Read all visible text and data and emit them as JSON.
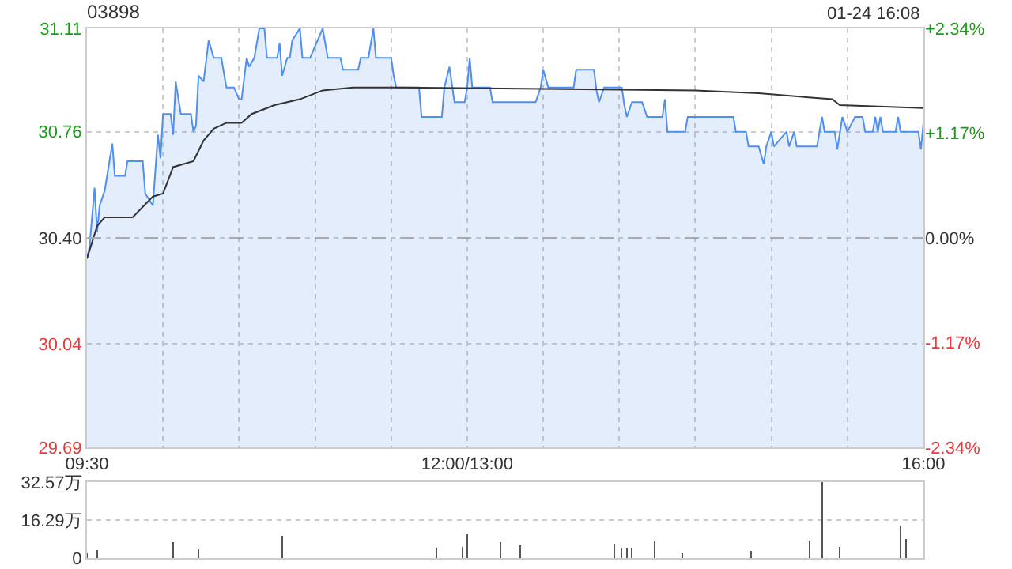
{
  "chart_data": [
    {
      "type": "line",
      "title": "03898",
      "annotations": [
        "01-24 16:08"
      ],
      "grid": true,
      "categories": [
        "09:30",
        null,
        null,
        null,
        null,
        null,
        null,
        null,
        null,
        null,
        null,
        null,
        null,
        null,
        null,
        null,
        null,
        null,
        null,
        null,
        null,
        null,
        null,
        null,
        null,
        null,
        null,
        null,
        null,
        null,
        null,
        null,
        null,
        null,
        null,
        null,
        null,
        null,
        null,
        null,
        null,
        null,
        null,
        null,
        null,
        null,
        null,
        null,
        null,
        null,
        null,
        null,
        null,
        null,
        null,
        null,
        null,
        null,
        null,
        null,
        null,
        null,
        null,
        null,
        null,
        null,
        null,
        null,
        null,
        null,
        null,
        null,
        null,
        null,
        null,
        null,
        null,
        null,
        null,
        null,
        null,
        null,
        null,
        null,
        null,
        null,
        null,
        null,
        null,
        null,
        null,
        null,
        null,
        null,
        null,
        null,
        null,
        null,
        null,
        null,
        null,
        null,
        null,
        null,
        null,
        null,
        null,
        null,
        null,
        null,
        null,
        null,
        null,
        null,
        null,
        null,
        null,
        null,
        null,
        null,
        null,
        null,
        null,
        null,
        null,
        null,
        null,
        null,
        null,
        null,
        null,
        null,
        null,
        null,
        null,
        null,
        null,
        null,
        null,
        null,
        null,
        null,
        null,
        null,
        null,
        null,
        null,
        null,
        null,
        null,
        "12:00/13:00",
        null,
        null,
        null,
        null,
        null,
        null,
        null,
        null,
        null,
        null,
        null,
        null,
        null,
        null,
        null,
        null,
        null,
        null,
        null,
        null,
        null,
        null,
        null,
        null,
        null,
        null,
        null,
        null,
        null,
        null,
        null,
        null,
        null,
        null,
        null,
        null,
        null,
        null,
        null,
        null,
        null,
        null,
        null,
        null,
        null,
        null,
        null,
        null,
        null,
        null,
        null,
        null,
        null,
        null,
        null,
        null,
        null,
        null,
        null,
        null,
        null,
        null,
        null,
        null,
        null,
        null,
        null,
        null,
        null,
        null,
        null,
        null,
        null,
        null,
        null,
        null,
        null,
        null,
        null,
        null,
        null,
        null,
        null,
        null,
        null,
        null,
        null,
        null,
        null,
        null,
        null,
        null,
        null,
        null,
        null,
        null,
        null,
        null,
        null,
        null,
        null,
        null,
        null,
        null,
        null,
        null,
        null,
        null,
        null,
        null,
        null,
        null,
        null,
        null,
        null,
        null,
        null,
        null,
        null,
        null,
        null,
        null,
        null,
        null,
        null,
        null,
        null,
        null,
        null,
        null,
        null,
        null,
        null,
        null,
        null,
        null,
        null,
        null,
        null,
        null,
        null,
        null,
        null,
        null,
        null,
        null,
        null,
        null,
        null,
        null,
        null,
        null,
        null,
        null,
        null,
        null,
        null,
        null,
        null,
        null,
        null,
        null,
        null,
        null,
        null,
        null,
        null,
        null,
        null,
        null,
        null,
        null,
        null,
        null,
        null,
        null,
        null,
        null,
        null,
        "16:00"
      ],
      "ylim": [
        29.69,
        31.11
      ],
      "yticks": [
        31.11,
        30.76,
        {
          "value": 30.4,
          "label": "30.40"
        },
        30.04,
        29.69
      ],
      "y2lim": [
        -2.34,
        2.34
      ],
      "y2ticks": [
        {
          "value": 2.34,
          "label": "+2.34%"
        },
        {
          "value": 1.17,
          "label": "+1.17%"
        },
        {
          "value": 0,
          "label": "0.00%"
        },
        {
          "value": -1.17,
          "label": "-1.17%"
        },
        {
          "value": -2.34,
          "label": "-2.34%"
        }
      ],
      "ref_lines": [
        {
          "axis": "y",
          "value": 30.4,
          "color": "#aaaaaa",
          "line_style": "dashed"
        }
      ],
      "series": [
        {
          "type": "area",
          "color": "#4f8fef",
          "values": [
            30.33,
            30.37,
            null,
            30.57,
            30.42,
            30.51,
            null,
            30.56,
            null,
            null,
            30.72,
            30.61,
            null,
            null,
            null,
            30.61,
            30.66,
            null,
            null,
            null,
            null,
            null,
            30.66,
            30.55,
            null,
            null,
            30.51,
            null,
            30.75,
            30.67,
            30.82,
            null,
            null,
            30.82,
            30.75,
            30.93,
            null,
            30.82,
            null,
            null,
            null,
            30.82,
            30.76,
            30.78,
            30.95,
            null,
            30.93,
            null,
            31.07,
            null,
            31.01,
            null,
            null,
            31.01,
            null,
            30.91,
            null,
            null,
            30.91,
            null,
            30.87,
            30.87,
            null,
            31.01,
            30.98,
            null,
            31.01,
            null,
            31.11,
            null,
            31.11,
            31.01,
            null,
            null,
            null,
            31.01,
            31.06,
            30.95,
            null,
            31.01,
            31.01,
            31.07,
            null,
            null,
            31.11,
            31.01,
            null,
            null,
            31.01,
            null,
            null,
            null,
            null,
            31.11,
            31.06,
            31.01,
            null,
            null,
            null,
            null,
            31.01,
            30.97,
            null,
            null,
            null,
            null,
            null,
            30.97,
            31.01,
            null,
            null,
            31.01,
            null,
            31.11,
            31.01,
            null,
            null,
            null,
            null,
            null,
            31.01,
            30.95,
            30.91,
            null,
            null,
            null,
            null,
            null,
            null,
            null,
            null,
            30.91,
            30.81,
            null,
            null,
            null,
            null,
            null,
            null,
            null,
            30.81,
            30.91,
            null,
            30.98,
            null,
            30.86,
            null,
            null,
            null,
            30.86,
            30.91,
            31.01,
            30.91,
            null,
            null,
            null,
            null,
            null,
            null,
            30.91,
            30.86,
            null,
            null,
            null,
            null,
            null,
            null,
            null,
            null,
            null,
            null,
            null,
            null,
            null,
            null,
            null,
            null,
            30.86,
            null,
            30.91,
            30.97,
            null,
            30.91,
            null,
            null,
            null,
            null,
            null,
            null,
            null,
            null,
            null,
            30.91,
            30.97,
            null,
            null,
            null,
            null,
            null,
            null,
            30.97,
            30.9,
            30.86,
            null,
            30.91,
            null,
            null,
            null,
            null,
            null,
            null,
            30.91,
            30.85,
            30.81,
            null,
            30.86,
            null,
            null,
            null,
            30.86,
            null,
            30.81,
            null,
            null,
            null,
            null,
            null,
            30.81,
            30.87,
            30.76,
            null,
            null,
            null,
            null,
            null,
            null,
            30.76,
            30.81,
            null,
            null,
            null,
            null,
            null,
            null,
            null,
            null,
            null,
            null,
            null,
            null,
            null,
            null,
            null,
            null,
            null,
            30.81,
            30.76,
            null,
            null,
            null,
            30.76,
            30.71,
            null,
            null,
            null,
            30.71,
            null,
            30.65,
            30.71,
            null,
            30.76,
            30.71,
            null,
            null,
            null,
            null,
            30.76,
            30.71,
            null,
            30.76,
            30.71,
            null,
            null,
            null,
            null,
            null,
            null,
            null,
            30.71,
            null,
            30.81,
            30.76,
            null,
            null,
            null,
            30.76,
            30.7,
            null,
            30.81,
            null,
            30.76,
            null,
            null,
            30.81,
            null,
            null,
            30.81,
            30.76,
            null,
            null,
            30.76,
            30.81,
            30.76,
            30.81,
            30.76,
            null,
            null,
            null,
            null,
            30.76,
            30.81,
            30.76,
            null,
            null,
            null,
            null,
            null,
            null,
            30.76,
            30.7,
            30.79
          ]
        },
        {
          "type": "line",
          "color": "#333333",
          "values": [
            30.33,
            null,
            null,
            null,
            30.44,
            null,
            null,
            30.47,
            null,
            null,
            null,
            null,
            null,
            null,
            null,
            null,
            null,
            null,
            30.47,
            null,
            null,
            null,
            null,
            null,
            null,
            null,
            30.54,
            null,
            null,
            null,
            30.55,
            null,
            null,
            null,
            30.64,
            null,
            null,
            null,
            null,
            null,
            null,
            null,
            30.66,
            null,
            null,
            null,
            30.73,
            null,
            null,
            null,
            30.77,
            null,
            null,
            null,
            null,
            30.79,
            null,
            null,
            null,
            null,
            null,
            30.79,
            null,
            null,
            null,
            30.82,
            null,
            null,
            null,
            null,
            null,
            null,
            null,
            null,
            30.85,
            null,
            null,
            null,
            null,
            null,
            null,
            null,
            null,
            null,
            30.87,
            null,
            null,
            null,
            null,
            null,
            null,
            null,
            null,
            30.9,
            null,
            null,
            null,
            null,
            null,
            null,
            null,
            null,
            null,
            null,
            null,
            30.91,
            null,
            null,
            null,
            null,
            null,
            null,
            null,
            30.91,
            null,
            null,
            null,
            null,
            null,
            null,
            null,
            30.91,
            null,
            null,
            null,
            null,
            null,
            null,
            null,
            null,
            null,
            null,
            null,
            null,
            null,
            null,
            null,
            null,
            null,
            null,
            null,
            null,
            null,
            null,
            null,
            null,
            null,
            null,
            null,
            null,
            null,
            null,
            null,
            null,
            null,
            null,
            null,
            null,
            null,
            null,
            null,
            null,
            null,
            null,
            null,
            null,
            null,
            null,
            null,
            null,
            null,
            null,
            null,
            null,
            null,
            null,
            null,
            null,
            null,
            null,
            null,
            null,
            null,
            null,
            null,
            null,
            null,
            null,
            null,
            null,
            null,
            null,
            null,
            null,
            null,
            null,
            null,
            null,
            null,
            null,
            null,
            null,
            null,
            null,
            null,
            null,
            null,
            null,
            null,
            null,
            null,
            null,
            null,
            null,
            null,
            null,
            null,
            null,
            null,
            null,
            null,
            null,
            null,
            null,
            null,
            null,
            null,
            null,
            null,
            null,
            null,
            null,
            null,
            null,
            null,
            null,
            null,
            null,
            null,
            null,
            30.9,
            null,
            null,
            null,
            null,
            null,
            null,
            null,
            null,
            null,
            null,
            null,
            null,
            null,
            null,
            null,
            null,
            null,
            null,
            null,
            null,
            null,
            null,
            null,
            null,
            30.89,
            null,
            null,
            null,
            null,
            null,
            null,
            null,
            null,
            null,
            null,
            null,
            null,
            null,
            null,
            null,
            null,
            null,
            null,
            null,
            null,
            null,
            null,
            null,
            null,
            null,
            null,
            null,
            null,
            30.87,
            null,
            null,
            30.85,
            null,
            null,
            null,
            null,
            null,
            null,
            null,
            null,
            null,
            null,
            null,
            null,
            null,
            null,
            null,
            null,
            null,
            null,
            null,
            null,
            null,
            null,
            null,
            null,
            null,
            null,
            null,
            null,
            null,
            null,
            null,
            null,
            30.84
          ]
        }
      ]
    },
    {
      "type": "bar",
      "grid": "y",
      "tick_labels": "y",
      "color": "#555555",
      "categories": [
        null,
        null,
        null,
        null,
        null,
        null,
        null,
        null,
        null,
        null,
        null,
        null,
        null,
        null,
        null,
        null,
        null,
        null,
        null,
        null,
        null,
        null,
        null,
        null,
        null,
        null,
        null,
        null,
        null,
        null,
        null,
        null,
        null,
        null,
        null,
        null,
        null,
        null,
        null,
        null,
        null,
        null,
        null,
        null,
        null,
        null,
        null,
        null,
        null,
        null,
        null,
        null,
        null,
        null,
        null,
        null,
        null,
        null,
        null,
        null,
        null,
        null,
        null,
        null,
        null,
        null,
        null,
        null,
        null,
        null,
        null,
        null,
        null,
        null,
        null,
        null,
        null,
        null,
        null,
        null,
        null,
        null,
        null,
        null,
        null,
        null,
        null,
        null,
        null,
        null,
        null,
        null,
        null,
        null,
        null,
        null,
        null,
        null,
        null,
        null,
        null,
        null,
        null,
        null,
        null,
        null,
        null,
        null,
        null,
        null,
        null,
        null,
        null,
        null,
        null,
        null,
        null,
        null,
        null,
        null,
        null,
        null,
        null,
        null,
        null,
        null,
        null,
        null,
        null,
        null,
        null,
        null,
        null,
        null,
        null,
        null,
        null,
        null,
        null,
        null,
        null,
        null,
        null,
        null,
        null,
        null,
        null,
        null,
        null,
        null,
        null,
        null,
        null,
        null,
        null,
        null,
        null,
        null,
        null,
        null,
        null,
        null,
        null,
        null,
        null,
        null,
        null,
        null,
        null,
        null,
        null,
        null,
        null,
        null,
        null,
        null,
        null,
        null,
        null,
        null,
        null,
        null,
        null,
        null,
        null,
        null,
        null,
        null,
        null,
        null,
        null,
        null,
        null,
        null,
        null,
        null,
        null,
        null,
        null,
        null,
        null,
        null,
        null,
        null,
        null,
        null,
        null,
        null,
        null,
        null,
        null,
        null,
        null,
        null,
        null,
        null,
        null,
        null,
        null,
        null,
        null,
        null,
        null,
        null,
        null,
        null,
        null,
        null,
        null,
        null,
        null,
        null,
        null,
        null,
        null,
        null,
        null,
        null,
        null,
        null,
        null,
        null,
        null,
        null,
        null,
        null,
        null,
        null,
        null,
        null,
        null,
        null,
        null,
        null,
        null,
        null,
        null,
        null,
        null,
        null,
        null,
        null,
        null,
        null,
        null,
        null,
        null,
        null,
        null,
        null,
        null,
        null,
        null,
        null,
        null,
        null,
        null,
        null,
        null,
        null,
        null,
        null,
        null,
        null,
        null,
        null,
        null,
        null,
        null,
        null,
        null,
        null,
        null,
        null,
        null,
        null,
        null,
        null,
        null,
        null,
        null,
        null,
        null,
        null,
        null,
        null,
        null,
        null,
        null,
        null,
        null,
        null,
        null,
        null,
        null,
        null,
        null,
        null,
        null,
        null,
        null,
        null,
        null,
        null,
        null,
        null,
        null,
        null,
        null,
        null,
        null
      ],
      "values": [
        2,
        null,
        null,
        null,
        3.3,
        null,
        null,
        null,
        null,
        null,
        null,
        null,
        null,
        null,
        null,
        null,
        null,
        null,
        null,
        null,
        null,
        null,
        null,
        null,
        null,
        null,
        null,
        null,
        null,
        null,
        null,
        null,
        null,
        null,
        6.8,
        null,
        null,
        null,
        null,
        null,
        null,
        null,
        null,
        null,
        3.8,
        null,
        null,
        null,
        null,
        null,
        null,
        null,
        null,
        null,
        null,
        null,
        null,
        null,
        null,
        null,
        null,
        null,
        null,
        null,
        null,
        null,
        null,
        null,
        null,
        null,
        null,
        null,
        null,
        null,
        null,
        null,
        null,
        9.5,
        null,
        null,
        null,
        null,
        null,
        null,
        null,
        null,
        null,
        null,
        null,
        null,
        null,
        null,
        null,
        null,
        null,
        null,
        null,
        null,
        null,
        null,
        null,
        null,
        null,
        null,
        null,
        null,
        null,
        null,
        null,
        null,
        null,
        null,
        null,
        null,
        null,
        null,
        null,
        null,
        null,
        null,
        null,
        null,
        null,
        null,
        null,
        null,
        null,
        null,
        null,
        null,
        null,
        null,
        null,
        null,
        null,
        null,
        null,
        null,
        4.3,
        null,
        null,
        null,
        null,
        null,
        null,
        null,
        null,
        null,
        4.9,
        null,
        10.3,
        null,
        null,
        null,
        null,
        null,
        null,
        null,
        null,
        null,
        null,
        null,
        null,
        6.8,
        null,
        null,
        null,
        null,
        null,
        null,
        null,
        5.4,
        null,
        null,
        null,
        null,
        null,
        null,
        null,
        null,
        null,
        null,
        null,
        null,
        null,
        null,
        null,
        null,
        null,
        null,
        null,
        null,
        null,
        null,
        null,
        null,
        null,
        null,
        null,
        null,
        null,
        null,
        null,
        null,
        null,
        null,
        null,
        null,
        6.2,
        null,
        null,
        4,
        null,
        4,
        null,
        4.5,
        null,
        null,
        null,
        null,
        null,
        null,
        null,
        null,
        7.6,
        null,
        null,
        null,
        null,
        null,
        null,
        null,
        null,
        null,
        null,
        2,
        null,
        null,
        null,
        null,
        null,
        null,
        null,
        null,
        null,
        null,
        null,
        null,
        null,
        null,
        null,
        null,
        null,
        null,
        null,
        null,
        null,
        null,
        null,
        null,
        null,
        null,
        3,
        null,
        null,
        null,
        null,
        null,
        null,
        null,
        null,
        null,
        null,
        null,
        null,
        null,
        null,
        null,
        null,
        null,
        null,
        null,
        null,
        null,
        null,
        7.3,
        null,
        null,
        null,
        null,
        32.5,
        null,
        null,
        null,
        null,
        null,
        null,
        4.9,
        null,
        null,
        null,
        null,
        null,
        null,
        null,
        null,
        null,
        null,
        null,
        null,
        null,
        null,
        null,
        null,
        null,
        null,
        null,
        null,
        null,
        null,
        null,
        13.6,
        null,
        8.1,
        null,
        null,
        null,
        null,
        null,
        null,
        null
      ],
      "ylim": [
        0,
        32.57
      ],
      "yticks": [
        0,
        {
          "value": 16.29,
          "label": "16.29万"
        },
        {
          "value": 32.57,
          "label": "32.57万"
        }
      ]
    }
  ]
}
